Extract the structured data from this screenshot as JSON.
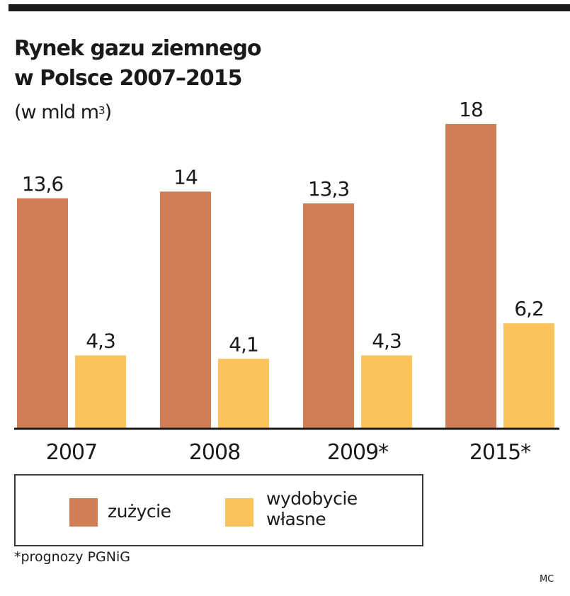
{
  "header": {
    "title": "Rynek gazu ziemnego\nw Polsce 2007–2015",
    "subtitle_prefix": "(w mld m",
    "subtitle_sup": "3",
    "subtitle_suffix": ")"
  },
  "chart_data": {
    "type": "bar",
    "categories": [
      "2007",
      "2008",
      "2009*",
      "2015*"
    ],
    "series": [
      {
        "name": "zużycie",
        "values": [
          13.6,
          14,
          13.3,
          18
        ],
        "labels": [
          "13,6",
          "14",
          "13,3",
          "18"
        ],
        "color": "#d07e56"
      },
      {
        "name": "wydobycie własne",
        "values": [
          4.3,
          4.1,
          4.3,
          6.2
        ],
        "labels": [
          "4,3",
          "4,1",
          "4,3",
          "6,2"
        ],
        "color": "#fcc25c"
      }
    ],
    "ylim": [
      0,
      18
    ],
    "grid": false,
    "legend_placement": "bottom-left"
  },
  "legend": {
    "item1": "zużycie",
    "item2_line1": "wydobycie",
    "item2_line2": "własne"
  },
  "footnote": "*prognozy PGNiG",
  "credit": "MC",
  "colors": {
    "axis": "#1a1a1a",
    "text": "#1a1a1a"
  }
}
